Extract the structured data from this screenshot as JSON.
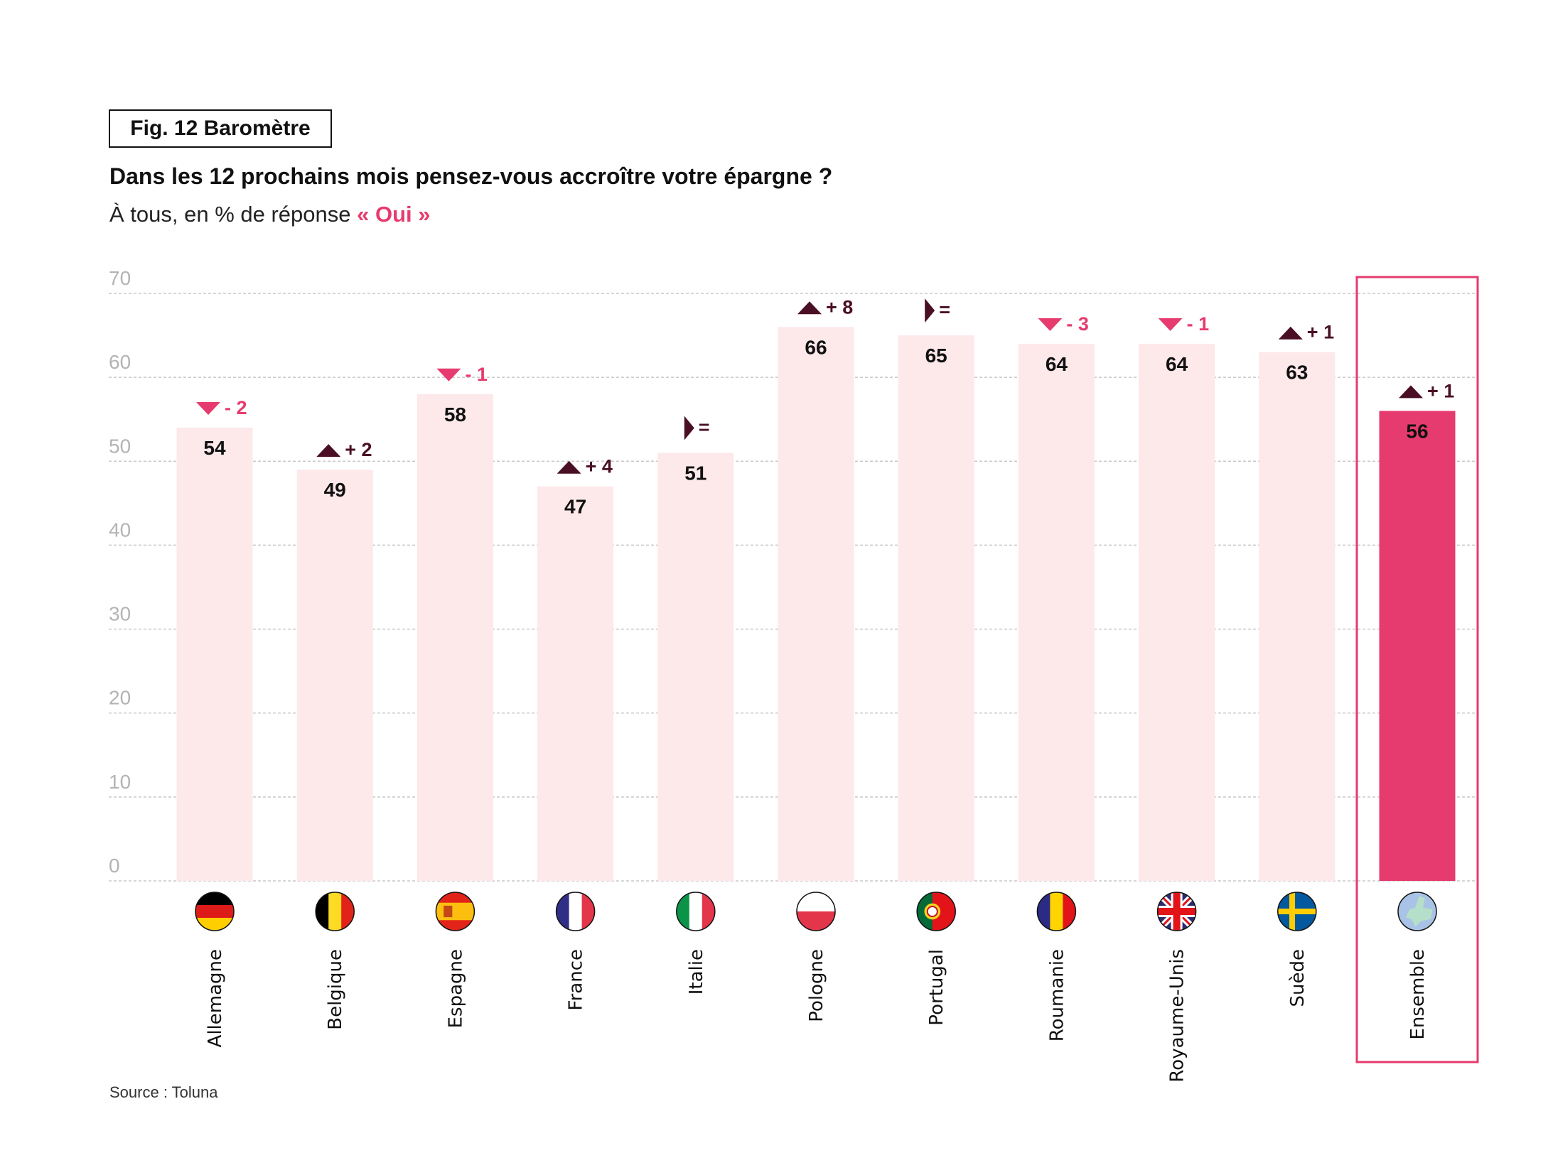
{
  "header": {
    "figure_label": "Fig. 12 Baromètre",
    "title": "Dans les 12 prochains mois pensez-vous accroître votre épargne ?",
    "subtitle_prefix": "À tous, en % de réponse ",
    "subtitle_highlight": "« Oui »"
  },
  "footer": {
    "source": "Source : Toluna"
  },
  "colors": {
    "bar": "#fde8ea",
    "highlight_bar": "#e63b6e",
    "highlight_frame": "#e63b6e",
    "delta_up": "#4a0f25",
    "delta_down": "#e63b6e",
    "delta_equal": "#4a0f25",
    "gridline": "#c8c8c8",
    "tick_label": "#b3b3b3"
  },
  "chart_data": {
    "type": "bar",
    "title": "Dans les 12 prochains mois pensez-vous accroître votre épargne ?",
    "subtitle": "À tous, en % de réponse « Oui »",
    "xlabel": "",
    "ylabel": "",
    "ylim": [
      0,
      70
    ],
    "yticks": [
      0,
      10,
      20,
      30,
      40,
      50,
      60,
      70
    ],
    "grid": true,
    "categories": [
      "Allemagne",
      "Belgique",
      "Espagne",
      "France",
      "Italie",
      "Pologne",
      "Portugal",
      "Roumanie",
      "Royaume-Unis",
      "Suède",
      "Ensemble"
    ],
    "values": [
      54,
      49,
      58,
      47,
      51,
      66,
      65,
      64,
      64,
      63,
      56
    ],
    "changes": [
      {
        "direction": "down",
        "label": "- 2"
      },
      {
        "direction": "up",
        "label": "+ 2"
      },
      {
        "direction": "down",
        "label": "- 1"
      },
      {
        "direction": "up",
        "label": "+ 4"
      },
      {
        "direction": "equal",
        "label": "="
      },
      {
        "direction": "up",
        "label": "+ 8"
      },
      {
        "direction": "equal",
        "label": "="
      },
      {
        "direction": "down",
        "label": "- 3"
      },
      {
        "direction": "down",
        "label": "- 1"
      },
      {
        "direction": "up",
        "label": "+ 1"
      },
      {
        "direction": "up",
        "label": "+ 1"
      }
    ],
    "flags": [
      "germany-flag",
      "belgium-flag",
      "spain-flag",
      "france-flag",
      "italy-flag",
      "poland-flag",
      "portugal-flag",
      "romania-flag",
      "uk-flag",
      "sweden-flag",
      "europe-map"
    ],
    "highlighted_category": "Ensemble"
  }
}
